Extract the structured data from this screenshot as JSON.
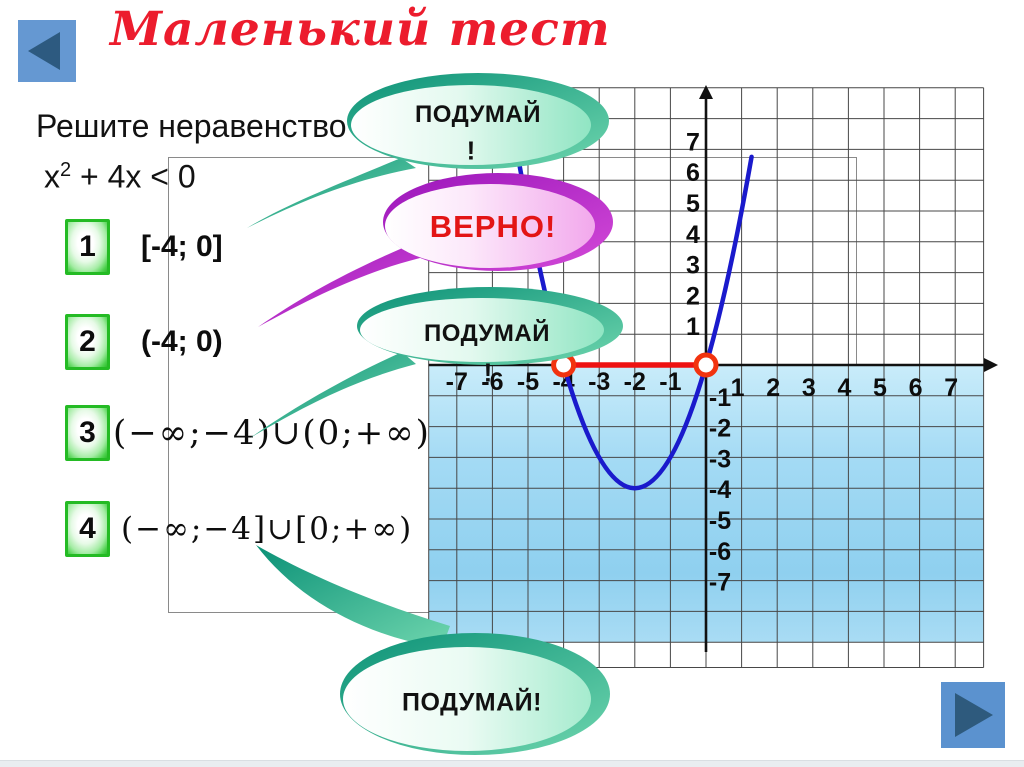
{
  "slide": {
    "title": "Маленький тест"
  },
  "problem": {
    "line1": "Решите неравенство",
    "expr": {
      "base": "х",
      "sup": "2",
      "rest": " + 4х < 0"
    }
  },
  "options": [
    {
      "num": "1",
      "answer": "[-4; 0]"
    },
    {
      "num": "2",
      "answer": "(-4; 0)"
    },
    {
      "num": "3",
      "answer": "(−∞;−4)∪(0;+∞)"
    },
    {
      "num": "4",
      "answer": "(−∞;−4]∪[0;+∞)"
    }
  ],
  "bubbles": [
    {
      "id": "think-top",
      "style": "teal",
      "text": "ПОДУМАЙ",
      "mark": "!"
    },
    {
      "id": "correct",
      "style": "magenta",
      "text": "ВЕРНО!"
    },
    {
      "id": "think-middle",
      "style": "teal",
      "text": "ПОДУМАЙ",
      "mark": "!"
    },
    {
      "id": "think-bottom",
      "style": "teal",
      "text": "ПОДУМАЙ!"
    }
  ],
  "navigation": {
    "back_icon": "triangle-left",
    "next_icon": "triangle-right"
  },
  "colors": {
    "title_red": "#ec1c2d",
    "correct_red": "#e31515",
    "bubble_teal": "#0b9177",
    "bubble_magenta": "#9a15ba",
    "option_green": "#2eba2e",
    "button_blue": "#5b92cf",
    "button_triangle": "#2e5a7d",
    "curve_blue": "#1a1acc",
    "segment_red": "#ee1111",
    "region_blue": "#9bd7f3"
  },
  "chart_data": {
    "type": "line",
    "function": "y = x2 + 4x",
    "x_ticks_negative": [
      -7,
      -6,
      -5,
      -4,
      -3,
      -2,
      -1
    ],
    "x_ticks_positive": [
      1,
      2,
      3,
      4,
      5,
      6,
      7
    ],
    "y_ticks_positive": [
      7,
      6,
      5,
      4,
      3,
      2,
      1
    ],
    "y_ticks_negative": [
      -1,
      -2,
      -3,
      -4,
      -5,
      -6,
      -7
    ],
    "xlim": [
      -7.8,
      7.8
    ],
    "ylim": [
      -9.8,
      9.2
    ],
    "grid": true,
    "parabola": {
      "a": 1,
      "b": 4,
      "c": 0,
      "vertex": [
        -2,
        -4
      ],
      "roots": [
        -4,
        0
      ],
      "draw_from": -5.3,
      "draw_to": 1.28
    },
    "highlight": {
      "from": -4,
      "to": 0,
      "y": 0,
      "open_endpoints": true
    },
    "shaded_region": "below-x-axis"
  }
}
